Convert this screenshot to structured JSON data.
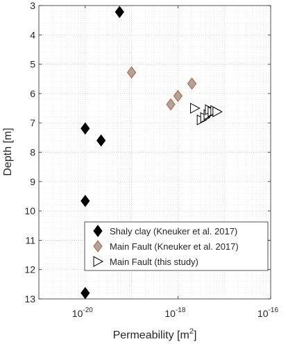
{
  "chart_data": {
    "type": "scatter",
    "xlabel": "Permeability [m",
    "xlabel_sup": "2",
    "xlabel_end": "]",
    "ylabel": "Depth [m]",
    "xscale": "log",
    "xlim": [
      1e-21,
      1e-16
    ],
    "ylim": [
      3,
      13
    ],
    "y_reversed": true,
    "grid": true,
    "legend_position": "lower-right",
    "x_ticks": [
      {
        "value": 1e-20,
        "base": "10",
        "exp": "-20"
      },
      {
        "value": 1e-18,
        "base": "10",
        "exp": "-18"
      },
      {
        "value": 1e-16,
        "base": "10",
        "exp": "-16"
      }
    ],
    "y_ticks": [
      "3",
      "4",
      "5",
      "6",
      "7",
      "8",
      "9",
      "10",
      "11",
      "12",
      "13"
    ],
    "series": [
      {
        "name": "Shaly clay (Kneuker et al. 2017)",
        "marker": "diamond",
        "fill": "#000000",
        "stroke": "#000000",
        "points": [
          {
            "x": 5.5e-20,
            "y": 3.22
          },
          {
            "x": 1e-20,
            "y": 7.19
          },
          {
            "x": 2.2e-20,
            "y": 7.6
          },
          {
            "x": 1e-20,
            "y": 9.66
          },
          {
            "x": 1e-20,
            "y": 12.8
          }
        ]
      },
      {
        "name": "Main Fault (Kneuker et al. 2017)",
        "marker": "diamond",
        "fill": "#a6a6a6",
        "stroke": "#d9531e",
        "points": [
          {
            "x": 1e-19,
            "y": 5.28
          },
          {
            "x": 2e-18,
            "y": 5.66
          },
          {
            "x": 1e-18,
            "y": 6.08
          },
          {
            "x": 7e-19,
            "y": 6.37
          }
        ]
      },
      {
        "name": "Main Fault (this study)",
        "marker": "triangle-right",
        "fill": "#ffffff",
        "stroke": "#000000",
        "points": [
          {
            "x": 2.3e-18,
            "y": 6.5
          },
          {
            "x": 3.2e-18,
            "y": 6.9
          },
          {
            "x": 3.8e-18,
            "y": 6.82
          },
          {
            "x": 4.5e-18,
            "y": 6.72
          },
          {
            "x": 4.8e-18,
            "y": 6.55
          },
          {
            "x": 5.5e-18,
            "y": 6.62
          },
          {
            "x": 6.3e-18,
            "y": 6.58
          },
          {
            "x": 7e-18,
            "y": 6.62
          }
        ]
      }
    ]
  }
}
